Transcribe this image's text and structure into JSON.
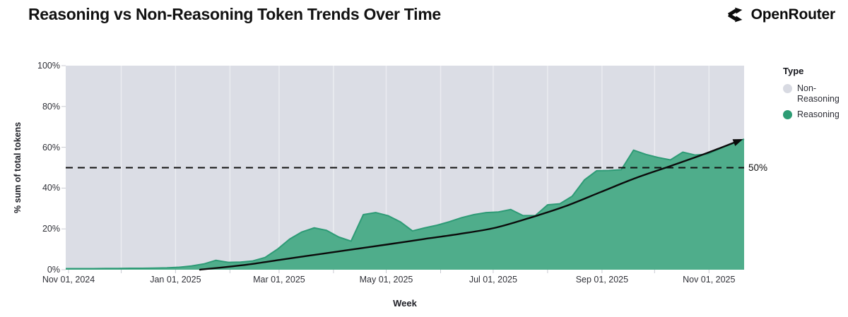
{
  "header": {
    "title": "Reasoning vs Non-Reasoning Token Trends Over Time",
    "brand": "OpenRouter",
    "brand_icon": "openrouter-route-split-icon"
  },
  "legend": {
    "title": "Type",
    "items": [
      {
        "label": "Non-Reasoning",
        "color": "#D8DAE2"
      },
      {
        "label": "Reasoning",
        "color": "#2D9C74"
      }
    ]
  },
  "chart_data": {
    "type": "area",
    "stacking": "100%",
    "title": "Reasoning vs Non-Reasoning Token Trends Over Time",
    "xlabel": "Week",
    "ylabel": "% sum of total tokens",
    "ylim": [
      0,
      100
    ],
    "x_start_label": "Nov 01, 2024",
    "x_cadence": "weekly",
    "grid": "subtle vertical monthly lines",
    "legend_position": "right",
    "colors": {
      "reasoning_fill": "#4FAD8B",
      "reasoning_edge": "#2E9B76",
      "non_reasoning_fill": "#DBDDE5",
      "trend_line": "#0b0b0b",
      "reference_line": "#111111",
      "tick_mark": "#c9cad1",
      "gridline": "rgba(255,255,255,0.45)"
    },
    "y_ticks": [
      {
        "label": "0%",
        "value": 0
      },
      {
        "label": "20%",
        "value": 20
      },
      {
        "label": "40%",
        "value": 40
      },
      {
        "label": "60%",
        "value": 60
      },
      {
        "label": "80%",
        "value": 80
      },
      {
        "label": "100%",
        "value": 100
      }
    ],
    "x_ticks": [
      {
        "label": "Nov 01, 2024",
        "week": 0
      },
      {
        "label": "Jan 01, 2025",
        "week": 8.71
      },
      {
        "label": "Mar 01, 2025",
        "week": 17.14
      },
      {
        "label": "May 01, 2025",
        "week": 25.86
      },
      {
        "label": "Jul 01, 2025",
        "week": 34.57
      },
      {
        "label": "Sep 01, 2025",
        "week": 43.43
      },
      {
        "label": "Nov 01, 2025",
        "week": 52.14
      }
    ],
    "x_minor_tick_weeks": [
      4.29,
      13.14,
      21.57,
      30.29,
      39.0,
      47.71
    ],
    "x_domain_weeks": [
      0,
      55
    ],
    "series": [
      {
        "name": "Reasoning",
        "unit": "% of total tokens per week",
        "values": [
          0.5,
          0.5,
          0.5,
          0.6,
          0.6,
          0.7,
          0.7,
          0.8,
          0.9,
          1.2,
          1.8,
          2.8,
          4.6,
          3.6,
          3.7,
          4.3,
          6.0,
          10.0,
          15.0,
          18.5,
          20.5,
          19.3,
          16.0,
          14.0,
          27.0,
          28.0,
          26.5,
          23.5,
          19.0,
          20.5,
          21.8,
          23.5,
          25.5,
          27.0,
          28.0,
          28.3,
          29.5,
          26.5,
          26.5,
          31.8,
          32.3,
          36.0,
          44.0,
          48.5,
          48.6,
          49.0,
          58.6,
          56.5,
          55.0,
          53.8,
          57.6,
          56.2,
          56.6,
          59.3,
          61.8,
          64.0
        ]
      },
      {
        "name": "Non-Reasoning",
        "note": "remainder of 100% stack above Reasoning"
      }
    ],
    "reference_line": {
      "label": "50%",
      "value": 50,
      "style": "dashed"
    },
    "trend_line": {
      "style": "solid curve with arrowhead",
      "points": [
        [
          10.7,
          0
        ],
        [
          14.55,
          2.5
        ],
        [
          17.4,
          5
        ],
        [
          20.3,
          7.5
        ],
        [
          23.2,
          10
        ],
        [
          26.1,
          12.5
        ],
        [
          28.9,
          15
        ],
        [
          31.8,
          17.5
        ],
        [
          34.7,
          20.5
        ],
        [
          37.6,
          25.5
        ],
        [
          40.4,
          31
        ],
        [
          43.3,
          38
        ],
        [
          46.2,
          45
        ],
        [
          49.1,
          51
        ],
        [
          51.9,
          57
        ],
        [
          54.7,
          63.5
        ]
      ]
    }
  }
}
